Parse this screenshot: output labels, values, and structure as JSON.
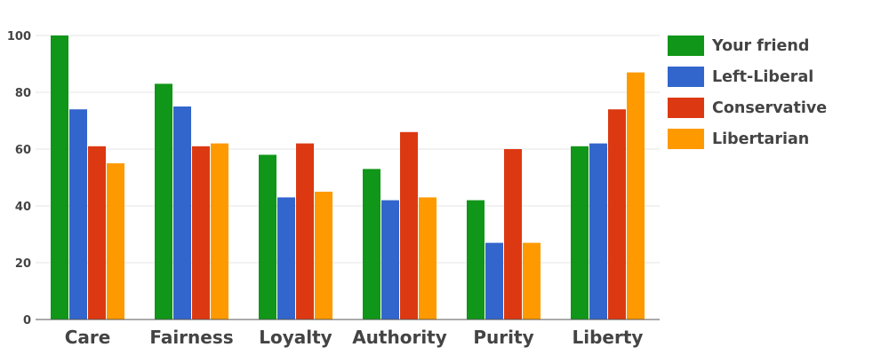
{
  "chart_data": {
    "type": "bar",
    "title": "",
    "xlabel": "",
    "ylabel": "",
    "categories": [
      "Care",
      "Fairness",
      "Loyalty",
      "Authority",
      "Purity",
      "Liberty"
    ],
    "ylim": [
      0,
      100
    ],
    "yticks": [
      "0",
      "20",
      "40",
      "60",
      "80",
      "100"
    ],
    "grid": true,
    "legend_position": "right",
    "series": [
      {
        "name": "Your friend",
        "color": "#109618",
        "values": [
          100,
          83,
          58,
          53,
          42,
          61
        ]
      },
      {
        "name": "Left-Liberal",
        "color": "#3366cc",
        "values": [
          74,
          75,
          43,
          42,
          27,
          62
        ]
      },
      {
        "name": "Conservative",
        "color": "#dc3912",
        "values": [
          61,
          61,
          62,
          66,
          60,
          74
        ]
      },
      {
        "name": "Libertarian",
        "color": "#ff9900",
        "values": [
          55,
          62,
          45,
          43,
          27,
          87
        ]
      }
    ]
  }
}
